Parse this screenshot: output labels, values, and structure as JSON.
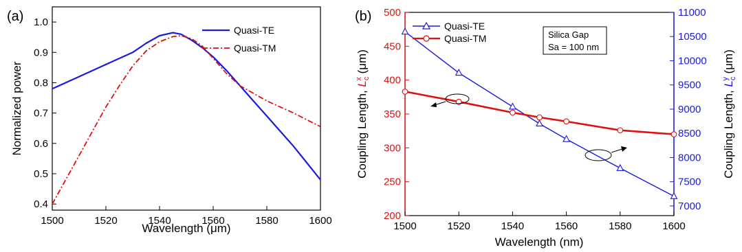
{
  "colors": {
    "blue": "#1a1adf",
    "red": "#e01010",
    "black": "#000000"
  },
  "chart_data": [
    {
      "type": "line",
      "panel_label": "(a)",
      "xlabel_main": "Wavelength (",
      "xlabel_unit": "μm",
      "xlabel_close": ")",
      "ylabel": "Normalized power",
      "xlim": [
        1500,
        1600
      ],
      "ylim": [
        0.38,
        1.05
      ],
      "xticks": [
        "1500",
        "1520",
        "1540",
        "1560",
        "1580",
        "1600"
      ],
      "yticks": [
        "0.4",
        "0.5",
        "0.6",
        "0.7",
        "0.8",
        "0.9",
        "1.0"
      ],
      "legend_position": "top-right",
      "series": [
        {
          "name": "Quasi-TE",
          "style": "solid",
          "color": "#1a1adf",
          "x": [
            1500,
            1510,
            1520,
            1530,
            1535,
            1540,
            1545,
            1548,
            1552,
            1556,
            1560,
            1565,
            1570,
            1575,
            1580,
            1585,
            1590,
            1595,
            1600
          ],
          "y": [
            0.78,
            0.82,
            0.86,
            0.9,
            0.93,
            0.955,
            0.965,
            0.96,
            0.94,
            0.915,
            0.885,
            0.84,
            0.79,
            0.74,
            0.69,
            0.64,
            0.59,
            0.535,
            0.48
          ]
        },
        {
          "name": "Quasi-TM",
          "style": "dashdot",
          "color": "#e01010",
          "x": [
            1500,
            1505,
            1510,
            1515,
            1520,
            1525,
            1530,
            1535,
            1540,
            1545,
            1548,
            1552,
            1556,
            1560,
            1565,
            1570,
            1575,
            1580,
            1590,
            1600
          ],
          "y": [
            0.4,
            0.48,
            0.56,
            0.64,
            0.72,
            0.79,
            0.855,
            0.905,
            0.935,
            0.952,
            0.955,
            0.945,
            0.92,
            0.88,
            0.83,
            0.79,
            0.765,
            0.74,
            0.7,
            0.655
          ]
        }
      ]
    },
    {
      "type": "line",
      "panel_label": "(b)",
      "xlabel": "Wavelength (nm)",
      "ylabel_left_main": "Coupling Length, ",
      "ylabel_left_sym": "L",
      "ylabel_left_sub": "c",
      "ylabel_left_sup": "x",
      "ylabel_left_unit": " (μm)",
      "ylabel_right_main": "Coupling Length, ",
      "ylabel_right_sym": "L",
      "ylabel_right_sub": "c",
      "ylabel_right_sup": "y",
      "ylabel_right_unit": " (μm)",
      "xlim": [
        1500,
        1600
      ],
      "ylim_left": [
        200,
        500
      ],
      "ylim_right": [
        6800,
        11000
      ],
      "xticks": [
        "1500",
        "1520",
        "1540",
        "1560",
        "1580",
        "1600"
      ],
      "yticks_left": [
        "200",
        "250",
        "300",
        "350",
        "400",
        "450",
        "500"
      ],
      "yticks_right": [
        "7000",
        "7500",
        "8000",
        "8500",
        "9000",
        "9500",
        "10000",
        "10500",
        "11000"
      ],
      "annotation": [
        "Silica Gap",
        "Sa = 100 nm"
      ],
      "legend_position": "top-left",
      "series": [
        {
          "name": "Quasi-TE",
          "axis": "right",
          "color": "#1a1adf",
          "marker": "triangle",
          "x": [
            1500,
            1520,
            1540,
            1550,
            1560,
            1580,
            1600
          ],
          "y": [
            10600,
            9750,
            9050,
            8700,
            8380,
            7780,
            7200
          ]
        },
        {
          "name": "Quasi-TM",
          "axis": "left",
          "color": "#e01010",
          "marker": "circle",
          "x": [
            1500,
            1520,
            1540,
            1550,
            1560,
            1580,
            1600
          ],
          "y": [
            383,
            368,
            352,
            345,
            339,
            326,
            320
          ]
        }
      ]
    }
  ]
}
